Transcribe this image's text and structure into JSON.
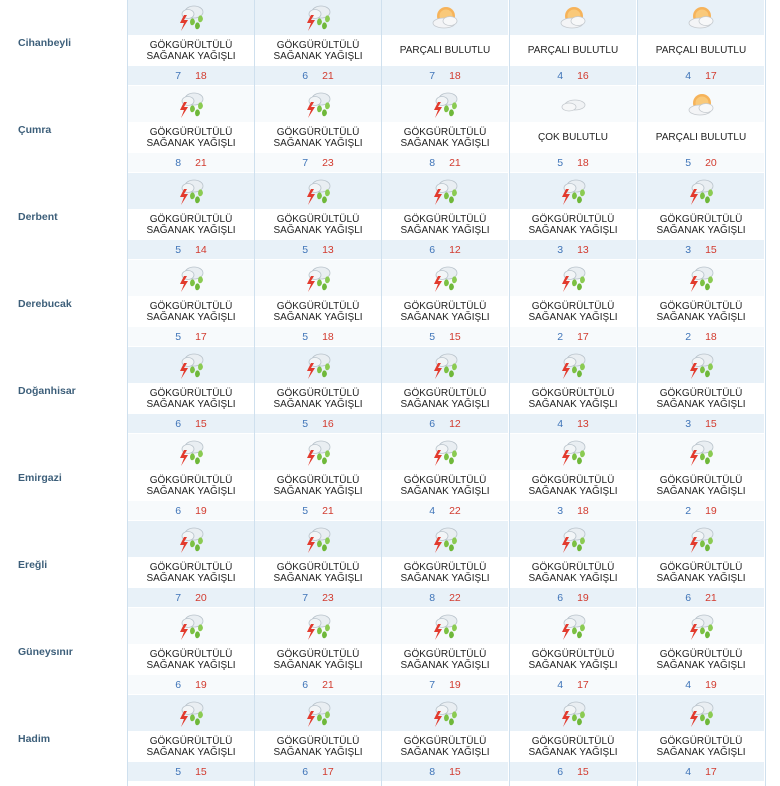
{
  "colors": {
    "row_band": "#e8f1f8",
    "row_band_light": "#f7fafc",
    "city_text": "#3d5f7a",
    "min_temp": "#3f74b8",
    "max_temp": "#d23b2f"
  },
  "icons": {
    "thunder": "thunderstorm-rain-icon",
    "partly": "partly-cloudy-sun-icon",
    "cloudy": "cloudy-icon"
  },
  "rows": [
    {
      "city": "Cihanbeyli",
      "days": [
        {
          "icon": "thunder",
          "cond": "GÖKGÜRÜLTÜLÜ SAĞANAK YAĞIŞLI",
          "min": "7",
          "max": "18"
        },
        {
          "icon": "thunder",
          "cond": "GÖKGÜRÜLTÜLÜ SAĞANAK YAĞIŞLI",
          "min": "6",
          "max": "21"
        },
        {
          "icon": "partly",
          "cond": "PARÇALI BULUTLU",
          "min": "7",
          "max": "18"
        },
        {
          "icon": "partly",
          "cond": "PARÇALI BULUTLU",
          "min": "4",
          "max": "16"
        },
        {
          "icon": "partly",
          "cond": "PARÇALI BULUTLU",
          "min": "4",
          "max": "17"
        }
      ]
    },
    {
      "city": "Çumra",
      "days": [
        {
          "icon": "thunder",
          "cond": "GÖKGÜRÜLTÜLÜ SAĞANAK YAĞIŞLI",
          "min": "8",
          "max": "21"
        },
        {
          "icon": "thunder",
          "cond": "GÖKGÜRÜLTÜLÜ SAĞANAK YAĞIŞLI",
          "min": "7",
          "max": "23"
        },
        {
          "icon": "thunder",
          "cond": "GÖKGÜRÜLTÜLÜ SAĞANAK YAĞIŞLI",
          "min": "8",
          "max": "21"
        },
        {
          "icon": "cloudy",
          "cond": "ÇOK BULUTLU",
          "min": "5",
          "max": "18"
        },
        {
          "icon": "partly",
          "cond": "PARÇALI BULUTLU",
          "min": "5",
          "max": "20"
        }
      ]
    },
    {
      "city": "Derbent",
      "days": [
        {
          "icon": "thunder",
          "cond": "GÖKGÜRÜLTÜLÜ SAĞANAK YAĞIŞLI",
          "min": "5",
          "max": "14"
        },
        {
          "icon": "thunder",
          "cond": "GÖKGÜRÜLTÜLÜ SAĞANAK YAĞIŞLI",
          "min": "5",
          "max": "13"
        },
        {
          "icon": "thunder",
          "cond": "GÖKGÜRÜLTÜLÜ SAĞANAK YAĞIŞLI",
          "min": "6",
          "max": "12"
        },
        {
          "icon": "thunder",
          "cond": "GÖKGÜRÜLTÜLÜ SAĞANAK YAĞIŞLI",
          "min": "3",
          "max": "13"
        },
        {
          "icon": "thunder",
          "cond": "GÖKGÜRÜLTÜLÜ SAĞANAK YAĞIŞLI",
          "min": "3",
          "max": "15"
        }
      ]
    },
    {
      "city": "Derebucak",
      "days": [
        {
          "icon": "thunder",
          "cond": "GÖKGÜRÜLTÜLÜ SAĞANAK YAĞIŞLI",
          "min": "5",
          "max": "17"
        },
        {
          "icon": "thunder",
          "cond": "GÖKGÜRÜLTÜLÜ SAĞANAK YAĞIŞLI",
          "min": "5",
          "max": "18"
        },
        {
          "icon": "thunder",
          "cond": "GÖKGÜRÜLTÜLÜ SAĞANAK YAĞIŞLI",
          "min": "5",
          "max": "15"
        },
        {
          "icon": "thunder",
          "cond": "GÖKGÜRÜLTÜLÜ SAĞANAK YAĞIŞLI",
          "min": "2",
          "max": "17"
        },
        {
          "icon": "thunder",
          "cond": "GÖKGÜRÜLTÜLÜ SAĞANAK YAĞIŞLI",
          "min": "2",
          "max": "18"
        }
      ]
    },
    {
      "city": "Doğanhisar",
      "days": [
        {
          "icon": "thunder",
          "cond": "GÖKGÜRÜLTÜLÜ SAĞANAK YAĞIŞLI",
          "min": "6",
          "max": "15"
        },
        {
          "icon": "thunder",
          "cond": "GÖKGÜRÜLTÜLÜ SAĞANAK YAĞIŞLI",
          "min": "5",
          "max": "16"
        },
        {
          "icon": "thunder",
          "cond": "GÖKGÜRÜLTÜLÜ SAĞANAK YAĞIŞLI",
          "min": "6",
          "max": "12"
        },
        {
          "icon": "thunder",
          "cond": "GÖKGÜRÜLTÜLÜ SAĞANAK YAĞIŞLI",
          "min": "4",
          "max": "13"
        },
        {
          "icon": "thunder",
          "cond": "GÖKGÜRÜLTÜLÜ SAĞANAK YAĞIŞLI",
          "min": "3",
          "max": "15"
        }
      ]
    },
    {
      "city": "Emirgazi",
      "days": [
        {
          "icon": "thunder",
          "cond": "GÖKGÜRÜLTÜLÜ SAĞANAK YAĞIŞLI",
          "min": "6",
          "max": "19"
        },
        {
          "icon": "thunder",
          "cond": "GÖKGÜRÜLTÜLÜ SAĞANAK YAĞIŞLI",
          "min": "5",
          "max": "21"
        },
        {
          "icon": "thunder",
          "cond": "GÖKGÜRÜLTÜLÜ SAĞANAK YAĞIŞLI",
          "min": "4",
          "max": "22"
        },
        {
          "icon": "thunder",
          "cond": "GÖKGÜRÜLTÜLÜ SAĞANAK YAĞIŞLI",
          "min": "3",
          "max": "18"
        },
        {
          "icon": "thunder",
          "cond": "GÖKGÜRÜLTÜLÜ SAĞANAK YAĞIŞLI",
          "min": "2",
          "max": "19"
        }
      ]
    },
    {
      "city": "Ereğli",
      "days": [
        {
          "icon": "thunder",
          "cond": "GÖKGÜRÜLTÜLÜ SAĞANAK YAĞIŞLI",
          "min": "7",
          "max": "20"
        },
        {
          "icon": "thunder",
          "cond": "GÖKGÜRÜLTÜLÜ SAĞANAK YAĞIŞLI",
          "min": "7",
          "max": "23"
        },
        {
          "icon": "thunder",
          "cond": "GÖKGÜRÜLTÜLÜ SAĞANAK YAĞIŞLI",
          "min": "8",
          "max": "22"
        },
        {
          "icon": "thunder",
          "cond": "GÖKGÜRÜLTÜLÜ SAĞANAK YAĞIŞLI",
          "min": "6",
          "max": "19"
        },
        {
          "icon": "thunder",
          "cond": "GÖKGÜRÜLTÜLÜ SAĞANAK YAĞIŞLI",
          "min": "6",
          "max": "21"
        }
      ]
    },
    {
      "city": "Güneysınır",
      "days": [
        {
          "icon": "thunder",
          "cond": "GÖKGÜRÜLTÜLÜ SAĞANAK YAĞIŞLI",
          "min": "6",
          "max": "19"
        },
        {
          "icon": "thunder",
          "cond": "GÖKGÜRÜLTÜLÜ SAĞANAK YAĞIŞLI",
          "min": "6",
          "max": "21"
        },
        {
          "icon": "thunder",
          "cond": "GÖKGÜRÜLTÜLÜ SAĞANAK YAĞIŞLI",
          "min": "7",
          "max": "19"
        },
        {
          "icon": "thunder",
          "cond": "GÖKGÜRÜLTÜLÜ SAĞANAK YAĞIŞLI",
          "min": "4",
          "max": "17"
        },
        {
          "icon": "thunder",
          "cond": "GÖKGÜRÜLTÜLÜ SAĞANAK YAĞIŞLI",
          "min": "4",
          "max": "19"
        }
      ]
    },
    {
      "city": "Hadim",
      "days": [
        {
          "icon": "thunder",
          "cond": "GÖKGÜRÜLTÜLÜ SAĞANAK YAĞIŞLI",
          "min": "5",
          "max": "15"
        },
        {
          "icon": "thunder",
          "cond": "GÖKGÜRÜLTÜLÜ SAĞANAK YAĞIŞLI",
          "min": "6",
          "max": "17"
        },
        {
          "icon": "thunder",
          "cond": "GÖKGÜRÜLTÜLÜ SAĞANAK YAĞIŞLI",
          "min": "8",
          "max": "15"
        },
        {
          "icon": "thunder",
          "cond": "GÖKGÜRÜLTÜLÜ SAĞANAK YAĞIŞLI",
          "min": "6",
          "max": "15"
        },
        {
          "icon": "thunder",
          "cond": "GÖKGÜRÜLTÜLÜ SAĞANAK YAĞIŞLI",
          "min": "4",
          "max": "17"
        }
      ]
    }
  ]
}
